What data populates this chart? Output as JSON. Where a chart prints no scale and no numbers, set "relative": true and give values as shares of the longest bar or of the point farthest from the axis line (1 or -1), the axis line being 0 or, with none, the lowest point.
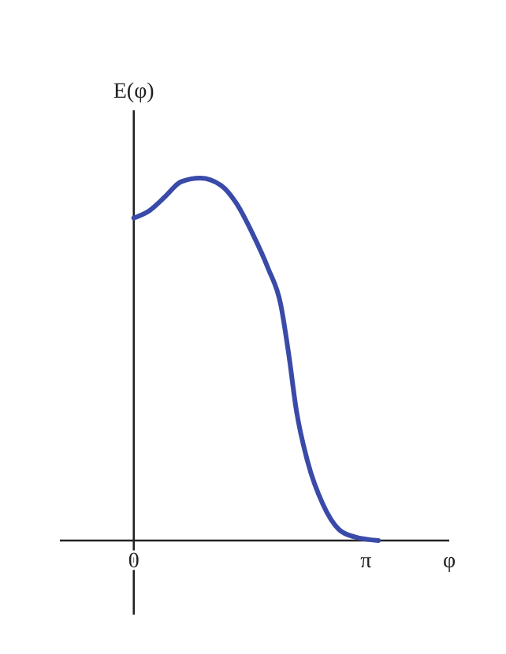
{
  "chart_data": {
    "type": "line",
    "relative": true,
    "xlabel": "φ",
    "ylabel": "E(φ)",
    "xlim": [
      -1.0,
      4.27
    ],
    "xticks": [
      0,
      {
        "value": 3.1416,
        "label": "π"
      }
    ],
    "tick_labels": "x",
    "line_style": "solid",
    "series": [
      {
        "color": "#3a4aa8",
        "x": [
          0,
          0.21,
          0.43,
          0.64,
          0.9,
          1.18,
          1.39,
          1.6,
          1.82,
          1.99,
          2.1,
          2.2,
          2.35,
          2.56,
          2.78,
          2.99,
          3.31
        ],
        "values": [
          0.89,
          0.91,
          0.95,
          0.99,
          1.0,
          0.98,
          0.93,
          0.85,
          0.75,
          0.65,
          0.51,
          0.36,
          0.22,
          0.1,
          0.03,
          0.01,
          0
        ]
      }
    ]
  }
}
